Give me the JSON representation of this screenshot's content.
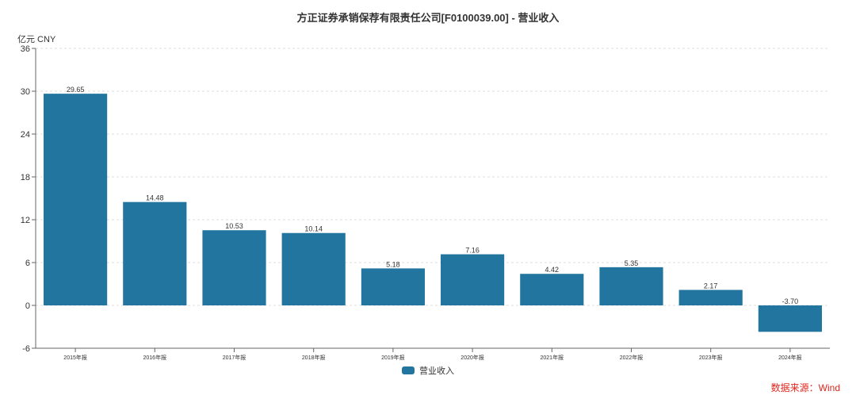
{
  "header": {
    "title": "方正证券承销保荐有限责任公司[F0100039.00] - 营业收入",
    "unit": "亿元  CNY"
  },
  "footer": {
    "source": "数据来源：Wind"
  },
  "legend": {
    "label": "营业收入",
    "color": "#21759f"
  },
  "chart_data": {
    "type": "bar",
    "title": "方正证券承销保荐有限责任公司[F0100039.00] - 营业收入",
    "xlabel": "",
    "ylabel": "亿元 CNY",
    "categories": [
      "2015年报",
      "2016年报",
      "2017年报",
      "2018年报",
      "2019年报",
      "2020年报",
      "2021年报",
      "2022年报",
      "2023年报",
      "2024年报"
    ],
    "series": [
      {
        "name": "营业收入",
        "values": [
          29.65,
          14.48,
          10.53,
          10.14,
          5.18,
          7.16,
          4.42,
          5.35,
          2.17,
          -3.7
        ],
        "color": "#21759f"
      }
    ],
    "value_labels": [
      "29.65",
      "14.48",
      "10.53",
      "10.14",
      "5.18",
      "7.16",
      "4.42",
      "5.35",
      "2.17",
      "-3.70"
    ],
    "ylim": [
      -6,
      36
    ],
    "yticks": [
      -6,
      0,
      6,
      12,
      18,
      24,
      30,
      36
    ],
    "grid": true,
    "legend_position": "bottom"
  }
}
